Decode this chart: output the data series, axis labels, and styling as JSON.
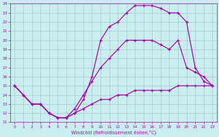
{
  "xlabel": "Windchill (Refroidissement éolien,°C)",
  "xlim": [
    -0.5,
    23.5
  ],
  "ylim": [
    11,
    24
  ],
  "xticks": [
    0,
    1,
    2,
    3,
    4,
    5,
    6,
    7,
    8,
    9,
    10,
    11,
    12,
    13,
    14,
    15,
    16,
    17,
    18,
    19,
    20,
    21,
    22,
    23
  ],
  "yticks": [
    11,
    12,
    13,
    14,
    15,
    16,
    17,
    18,
    19,
    20,
    21,
    22,
    23,
    24
  ],
  "bg_color": "#c8eef0",
  "line_color": "#aa00aa",
  "grid_color": "#9bbfc0",
  "series": [
    {
      "x": [
        0,
        1,
        2,
        3,
        4,
        5,
        6,
        7,
        8,
        9,
        10,
        11,
        12,
        13,
        14,
        15,
        16,
        17,
        18,
        19,
        20,
        21,
        22,
        23
      ],
      "y": [
        15,
        14,
        13,
        13,
        12,
        11.5,
        11.5,
        12,
        12.5,
        13,
        13.5,
        13.5,
        14,
        14,
        14.5,
        14.5,
        14.5,
        14.5,
        14.5,
        15,
        15,
        15,
        15,
        15
      ]
    },
    {
      "x": [
        0,
        1,
        2,
        3,
        4,
        5,
        6,
        7,
        8,
        9,
        10,
        11,
        12,
        13,
        14,
        15,
        16,
        17,
        18,
        19,
        20,
        21,
        22,
        23
      ],
      "y": [
        15,
        14,
        13,
        13,
        12,
        11.5,
        11.5,
        12.5,
        14,
        15.5,
        17,
        18,
        19,
        20,
        20,
        20,
        20,
        19.5,
        19,
        20,
        17,
        16.5,
        16,
        15
      ]
    },
    {
      "x": [
        0,
        1,
        2,
        3,
        4,
        5,
        6,
        7,
        8,
        9,
        10,
        11,
        12,
        13,
        14,
        15,
        16,
        17,
        18,
        19,
        20,
        21,
        22,
        23
      ],
      "y": [
        15,
        14,
        13,
        13,
        12,
        11.5,
        11.5,
        12,
        13.5,
        16,
        20,
        21.5,
        22,
        23,
        23.8,
        23.8,
        23.8,
        23.5,
        23,
        23,
        22,
        17,
        15.5,
        15
      ]
    }
  ]
}
